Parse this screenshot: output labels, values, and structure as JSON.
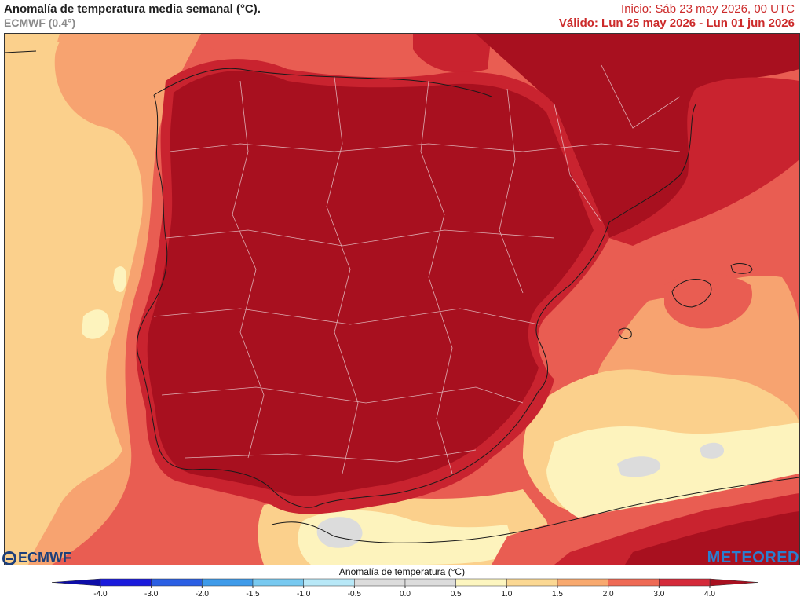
{
  "header": {
    "title": "Anomalía de temperatura media semanal (°C).",
    "subtitle": "ECMWF (0.4°)",
    "init": "Inicio: Sáb 23 may 2026, 00 UTC",
    "valid": "Válido: Lun 25 may 2026 - Lun 01 jun 2026"
  },
  "logos": {
    "ecmwf": "ECMWF",
    "meteored": "METEORED"
  },
  "legend": {
    "title": "Anomalía de temperatura (°C)",
    "ticks": [
      "-4.0",
      "-3.0",
      "-2.0",
      "-1.5",
      "-1.0",
      "-0.5",
      "0.0",
      "0.5",
      "1.0",
      "1.5",
      "2.0",
      "3.0",
      "4.0"
    ],
    "colors": [
      "#1a1adc",
      "#2b5fe3",
      "#3f9be9",
      "#78c9f0",
      "#b8e8f7",
      "#dcdcdc",
      "#dcdcdc",
      "#fdf6c0",
      "#fbd893",
      "#f8a96f",
      "#ee6a55",
      "#d42a3a"
    ],
    "under_color": "#0d0da8",
    "over_color": "#a81020"
  },
  "map_colors": {
    "gt4": "#a8101f",
    "c3_4": "#c9232f",
    "c2_3": "#e95d52",
    "c15_2": "#f7a370",
    "c1_15": "#fbd08c",
    "c05_1": "#fdf3bd",
    "neutral": "#dcdcdc"
  }
}
